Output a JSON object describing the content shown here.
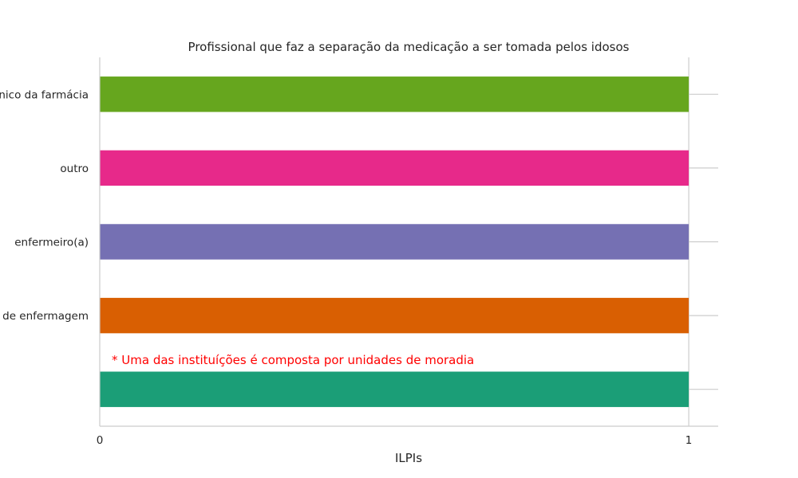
{
  "chart_data": {
    "type": "bar",
    "orientation": "horizontal",
    "title": "Profissional que faz a separação da medicação a ser tomada pelos idosos",
    "xlabel": "ILPIs",
    "ylabel": "",
    "xlim": [
      0,
      1.05
    ],
    "x_ticks": [
      "0",
      "1"
    ],
    "categories": [
      "técnico da farmácia",
      "outro",
      "enfermeiro(a)",
      "técnico(a) de enfermagem",
      ""
    ],
    "values": [
      1,
      1,
      1,
      1,
      1
    ],
    "colors": [
      "#66a61e",
      "#e7298a",
      "#7570b3",
      "#d95f02",
      "#1b9e77"
    ],
    "annotation": "* Uma das instituíções é composta por unidades de moradia",
    "annotation_color": "#ff0000",
    "grid": "vertical",
    "legend": "none"
  }
}
